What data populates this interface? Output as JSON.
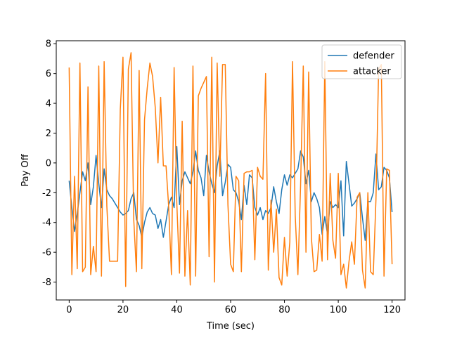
{
  "chart_data": {
    "type": "line",
    "title": "",
    "xlabel": "Time (sec)",
    "ylabel": "Pay Off",
    "xlim": [
      -4.8,
      124.8
    ],
    "ylim": [
      -9.2,
      8.2
    ],
    "xticks": [
      0,
      20,
      40,
      60,
      80,
      100,
      120
    ],
    "yticks": [
      8,
      6,
      4,
      2,
      0,
      -2,
      -4,
      -6,
      -8
    ],
    "grid": false,
    "legend_position": "top-right",
    "x": [
      0,
      1,
      2,
      3,
      4,
      5,
      6,
      7,
      8,
      9,
      10,
      11,
      12,
      13,
      14,
      15,
      16,
      17,
      18,
      19,
      20,
      21,
      22,
      23,
      24,
      25,
      26,
      27,
      28,
      29,
      30,
      31,
      32,
      33,
      34,
      35,
      36,
      37,
      38,
      39,
      40,
      41,
      42,
      43,
      44,
      45,
      46,
      47,
      48,
      49,
      50,
      51,
      52,
      53,
      54,
      55,
      56,
      57,
      58,
      59,
      60,
      61,
      62,
      63,
      64,
      65,
      66,
      67,
      68,
      69,
      70,
      71,
      72,
      73,
      74,
      75,
      76,
      77,
      78,
      79,
      80,
      81,
      82,
      83,
      84,
      85,
      86,
      87,
      88,
      89,
      90,
      91,
      92,
      93,
      94,
      95,
      96,
      97,
      98,
      99,
      100,
      101,
      102,
      103,
      104,
      105,
      106,
      107,
      108,
      109,
      110,
      111,
      112,
      113,
      114,
      115,
      116,
      117,
      118,
      119,
      120
    ],
    "series": [
      {
        "name": "defender",
        "color": "#1f77b4",
        "values": [
          -1.2,
          -3.0,
          -4.6,
          -3.4,
          -2.0,
          -0.6,
          -1.2,
          0.0,
          -2.8,
          -1.6,
          0.5,
          -1.4,
          -3.0,
          -0.4,
          -1.8,
          -2.2,
          -2.4,
          -2.7,
          -3.0,
          -3.3,
          -3.5,
          -3.4,
          -3.2,
          -2.4,
          -2.0,
          -3.8,
          -4.2,
          -5.0,
          -4.0,
          -3.3,
          -3.0,
          -3.4,
          -3.5,
          -4.4,
          -3.8,
          -5.0,
          -3.9,
          -2.8,
          -2.3,
          -3.0,
          1.1,
          -2.8,
          -1.2,
          -0.6,
          -1.0,
          -1.4,
          -0.6,
          0.8,
          -0.5,
          -1.0,
          -2.2,
          0.5,
          -0.6,
          -1.4,
          -2.0,
          -0.2,
          0.8,
          -2.2,
          -1.3,
          -0.1,
          -0.3,
          -1.8,
          -2.0,
          -2.6,
          -3.8,
          -1.5,
          -2.8,
          -0.8,
          -1.0,
          -3.0,
          -3.5,
          -3.0,
          -3.8,
          -3.2,
          -3.4,
          -3.0,
          -1.6,
          -2.6,
          -3.4,
          -1.8,
          -0.8,
          -1.5,
          -0.8,
          -1.0,
          -0.7,
          -0.4,
          0.8,
          0.4,
          -1.4,
          -0.5,
          -2.6,
          -2.0,
          -2.4,
          -3.0,
          -4.8,
          -3.6,
          -4.8,
          -2.6,
          -3.0,
          -2.8,
          -3.0,
          -1.2,
          -4.9,
          0.1,
          -1.4,
          -2.9,
          -2.7,
          -2.4,
          -2.0,
          -3.7,
          -5.2,
          -2.6,
          -2.6,
          -2.0,
          0.6,
          -1.8,
          -1.6,
          -0.3,
          -0.5,
          -1.0,
          -3.3
        ]
      },
      {
        "name": "attacker",
        "color": "#ff7f0e",
        "values": [
          6.4,
          -7.5,
          -0.9,
          -7.1,
          6.7,
          -7.3,
          -7.0,
          5.1,
          -7.5,
          -5.6,
          -7.3,
          6.5,
          -7.6,
          6.8,
          -2.9,
          -6.6,
          -6.6,
          -6.6,
          -6.6,
          3.6,
          7.1,
          -8.3,
          6.3,
          7.4,
          -3.8,
          -7.3,
          6.2,
          -7.1,
          2.9,
          5.0,
          6.7,
          5.8,
          3.7,
          0.0,
          4.4,
          -0.2,
          -0.2,
          -3.0,
          -7.5,
          6.4,
          -2.7,
          -7.4,
          2.8,
          -7.6,
          -3.2,
          -8.2,
          6.5,
          -7.6,
          4.5,
          5.0,
          5.4,
          5.8,
          -6.3,
          7.1,
          -8.0,
          6.7,
          -0.9,
          6.6,
          6.6,
          -2.8,
          -6.8,
          -7.3,
          -0.9,
          -1.2,
          -7.3,
          -0.7,
          -0.6,
          -0.6,
          -0.5,
          -6.5,
          -0.3,
          -0.9,
          -1.1,
          6.0,
          -7.2,
          -2.5,
          -6.0,
          -3.1,
          -7.7,
          -8.2,
          -5.0,
          -7.6,
          -5.3,
          6.8,
          -3.5,
          -7.5,
          -1.5,
          6.5,
          -6.0,
          6.1,
          -5.0,
          -7.3,
          -7.2,
          -4.8,
          -6.6,
          6.8,
          -6.5,
          -0.7,
          -5.2,
          -6.4,
          -0.7,
          -7.5,
          -6.8,
          -8.4,
          -6.6,
          -5.3,
          -6.8,
          -2.3,
          -2.0,
          -7.2,
          -8.4,
          -2.0,
          -7.3,
          -7.5,
          -2.5,
          6.3,
          6.6,
          -7.6,
          -0.4,
          -0.5,
          -6.8
        ]
      }
    ]
  }
}
